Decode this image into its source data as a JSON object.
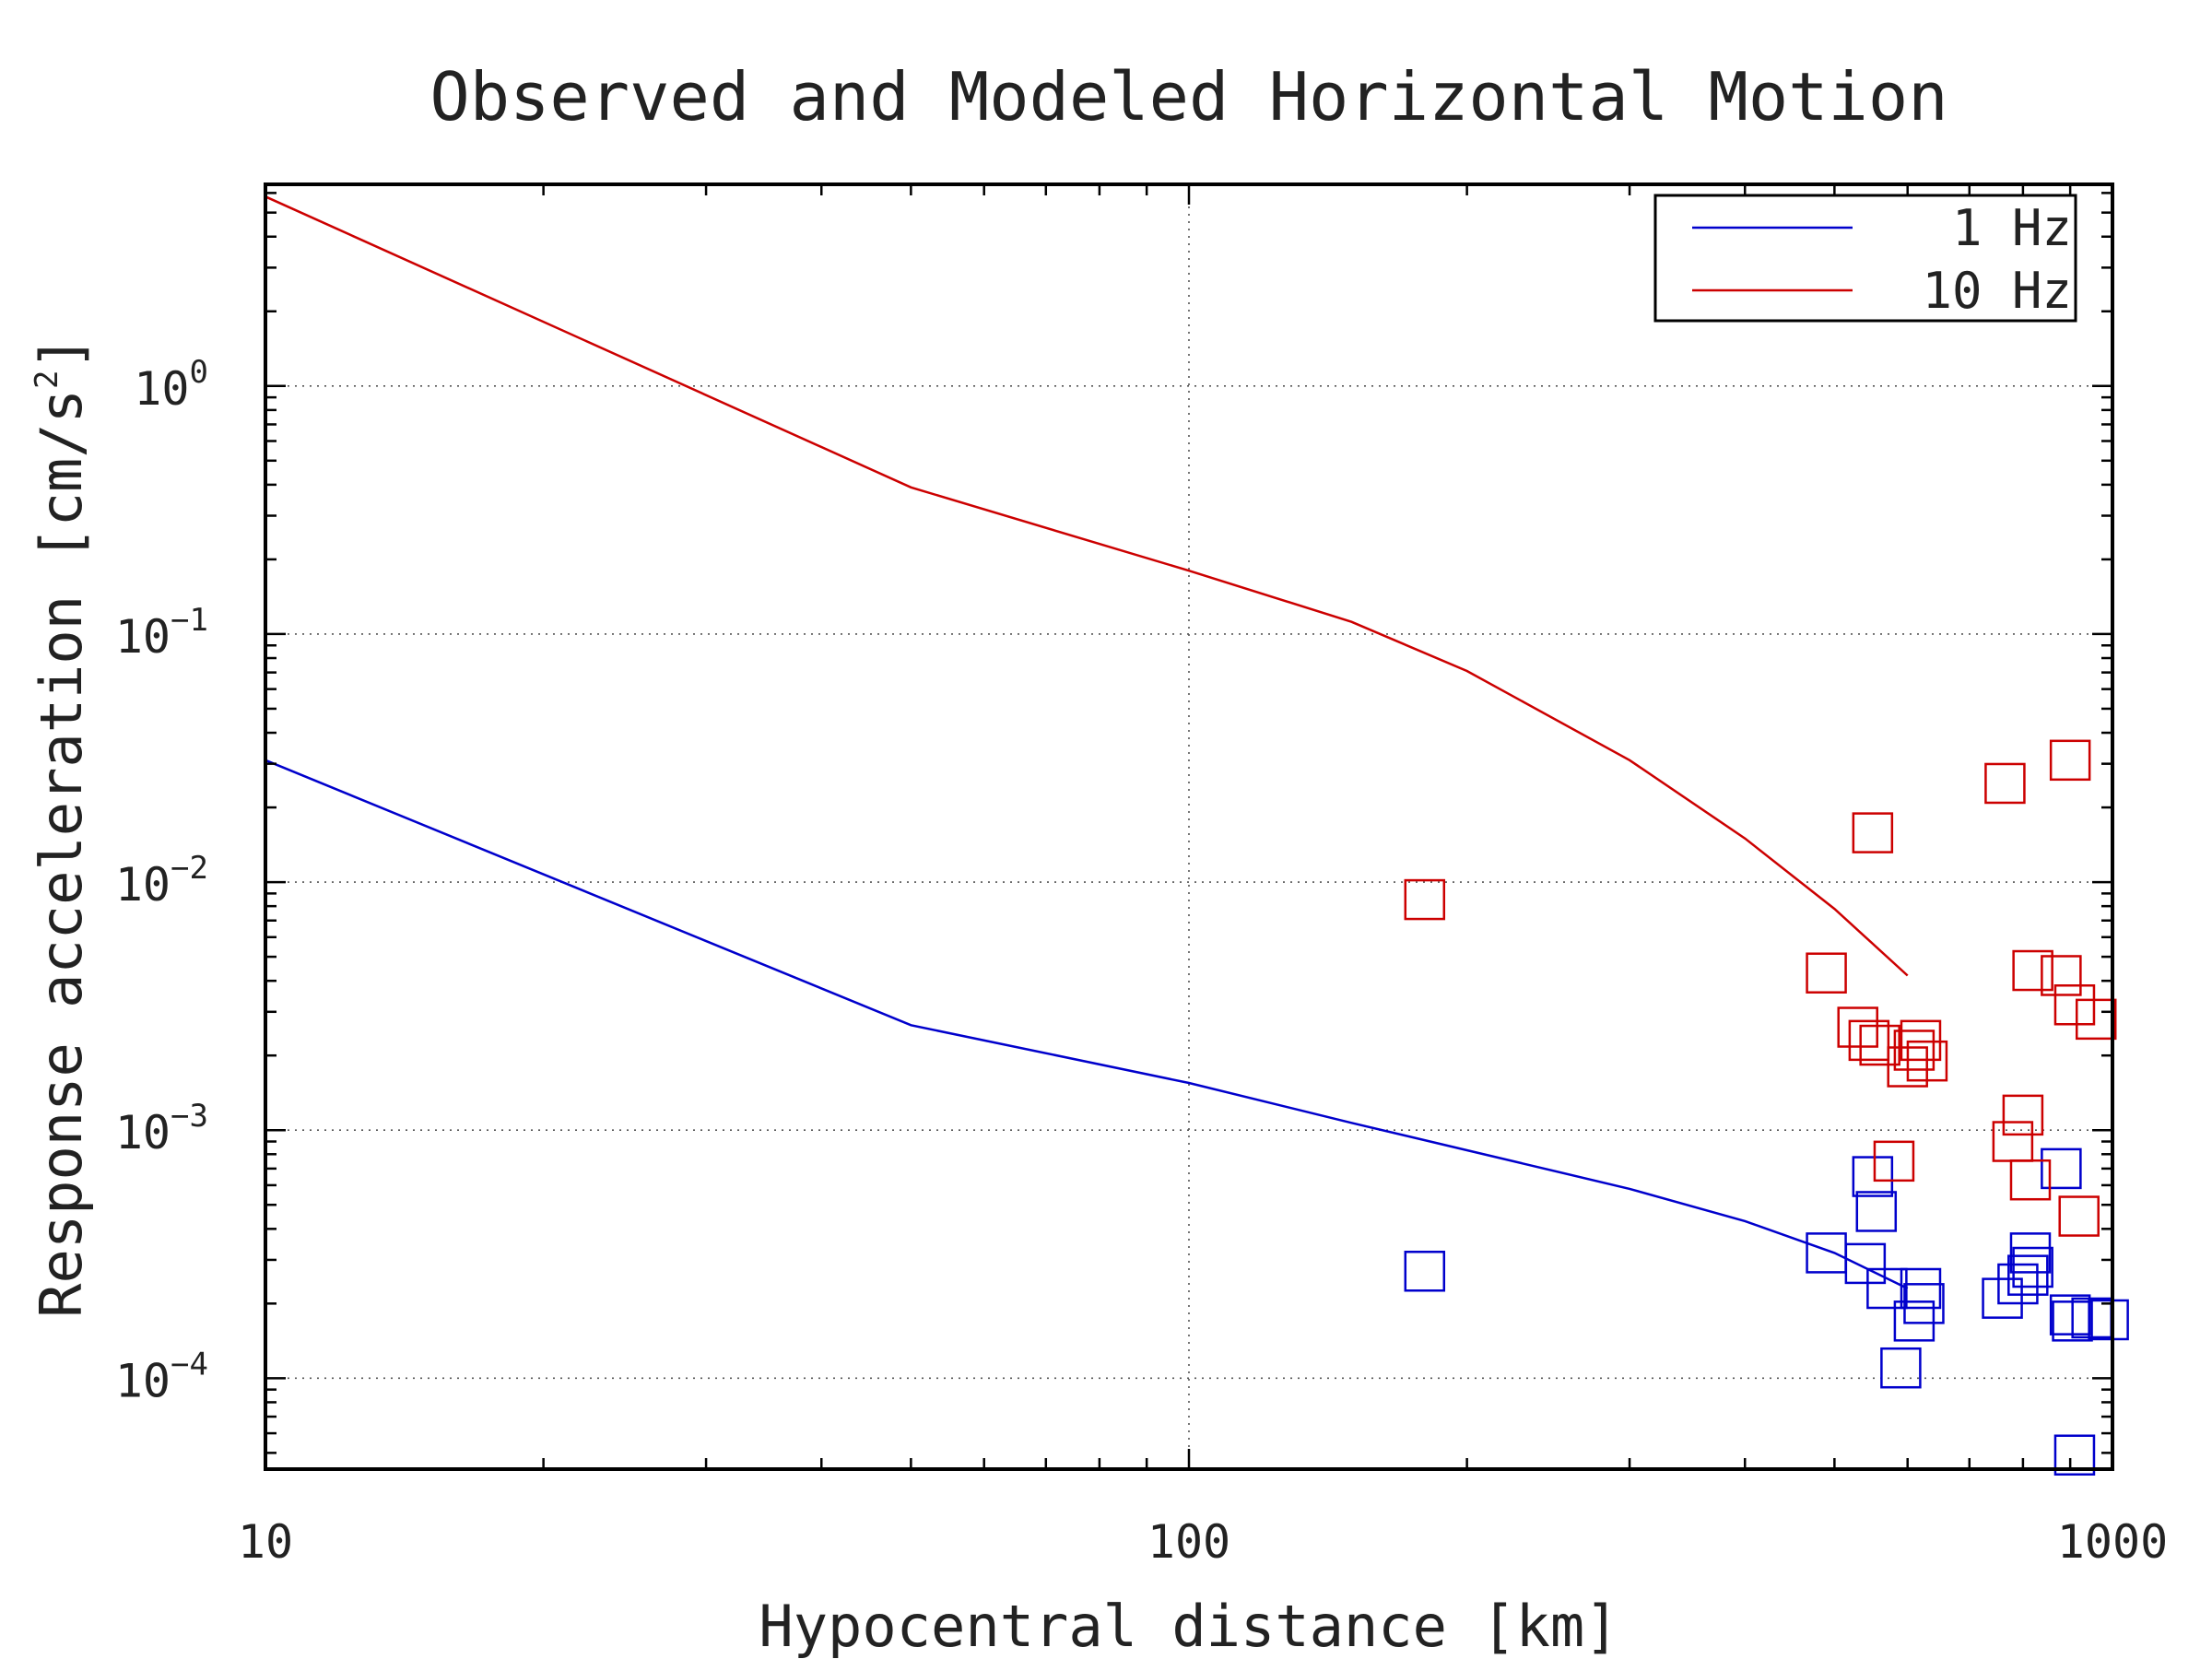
{
  "chart_data": {
    "type": "scatter",
    "title": "Observed and Modeled Horizontal Motion",
    "xlabel": "Hypocentral distance [km]",
    "ylabel_base": "Response acceleration [cm/s",
    "ylabel_sup": "2",
    "ylabel_close": "]",
    "x_scale": "log",
    "y_scale": "log",
    "xlim": [
      10,
      1000
    ],
    "ylim": [
      4.3e-05,
      6.5
    ],
    "grid": true,
    "legend_position": "top-right",
    "x_ticks": [
      {
        "value": 10,
        "label": "10"
      },
      {
        "value": 100,
        "label": "100"
      },
      {
        "value": 1000,
        "label": "1000"
      }
    ],
    "y_ticks": [
      {
        "value": 1,
        "base": "10",
        "exp": "0"
      },
      {
        "value": 0.1,
        "base": "10",
        "exp": "−1"
      },
      {
        "value": 0.01,
        "base": "10",
        "exp": "−2"
      },
      {
        "value": 0.001,
        "base": "10",
        "exp": "−3"
      },
      {
        "value": 0.0001,
        "base": "10",
        "exp": "−4"
      }
    ],
    "series": [
      {
        "name": "1 Hz",
        "color": "#0000cc",
        "line": [
          [
            10,
            0.031
          ],
          [
            50,
            0.00265
          ],
          [
            100,
            0.00155
          ],
          [
            150,
            0.00107
          ],
          [
            200,
            0.00083
          ],
          [
            300,
            0.00058
          ],
          [
            400,
            0.00043
          ],
          [
            500,
            0.00032
          ],
          [
            600,
            0.00023
          ]
        ],
        "points": [
          [
            180,
            0.00027
          ],
          [
            490,
            0.00032
          ],
          [
            550,
            0.00065
          ],
          [
            555,
            0.00047
          ],
          [
            540,
            0.00029
          ],
          [
            570,
            0.00023
          ],
          [
            590,
            0.00011
          ],
          [
            610,
            0.00017
          ],
          [
            620,
            0.00023
          ],
          [
            625,
            0.0002
          ],
          [
            760,
            0.00021
          ],
          [
            790,
            0.00024
          ],
          [
            810,
            0.00026
          ],
          [
            815,
            0.00032
          ],
          [
            820,
            0.00028
          ],
          [
            880,
            0.0007
          ],
          [
            900,
            0.00018
          ],
          [
            905,
            0.00017
          ],
          [
            910,
            4.9e-05
          ],
          [
            950,
            0.000175
          ],
          [
            990,
            0.000172
          ]
        ]
      },
      {
        "name": "10 Hz",
        "color": "#cc0000",
        "line": [
          [
            10,
            5.8
          ],
          [
            50,
            0.39
          ],
          [
            100,
            0.18
          ],
          [
            150,
            0.112
          ],
          [
            200,
            0.071
          ],
          [
            300,
            0.031
          ],
          [
            400,
            0.015
          ],
          [
            500,
            0.0078
          ],
          [
            600,
            0.0042
          ]
        ],
        "points": [
          [
            180,
            0.0085
          ],
          [
            490,
            0.0043
          ],
          [
            550,
            0.0158
          ],
          [
            530,
            0.0026
          ],
          [
            545,
            0.0023
          ],
          [
            560,
            0.0022
          ],
          [
            580,
            0.00075
          ],
          [
            600,
            0.0018
          ],
          [
            610,
            0.0021
          ],
          [
            620,
            0.0023
          ],
          [
            630,
            0.0019
          ],
          [
            765,
            0.025
          ],
          [
            780,
            0.0009
          ],
          [
            800,
            0.00115
          ],
          [
            815,
            0.00063
          ],
          [
            820,
            0.0044
          ],
          [
            880,
            0.0042
          ],
          [
            900,
            0.031
          ],
          [
            910,
            0.0032
          ],
          [
            920,
            0.00045
          ],
          [
            960,
            0.0028
          ]
        ]
      }
    ]
  }
}
